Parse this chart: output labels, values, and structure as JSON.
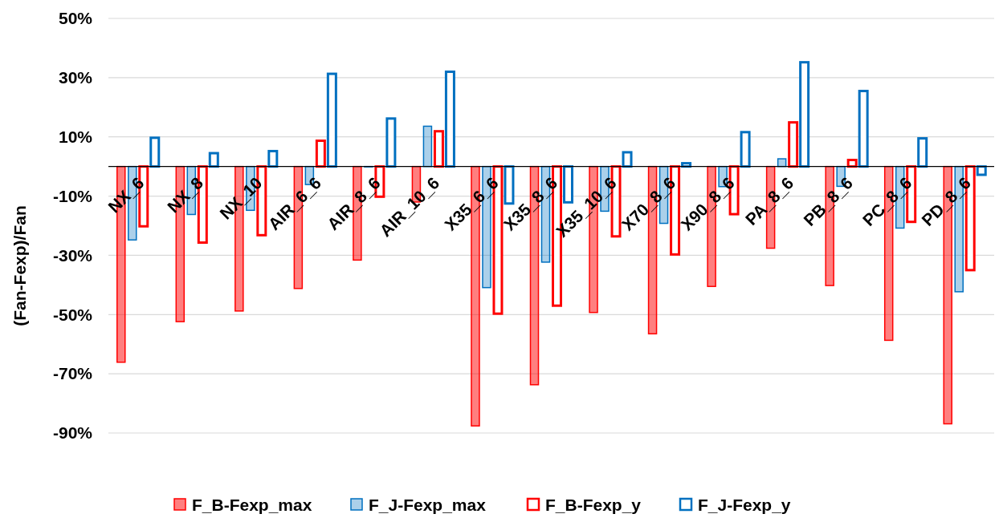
{
  "chart_data": {
    "type": "bar",
    "ylabel": "(Fan-Fexp)/Fan",
    "categories": [
      "NX_6",
      "NX_8",
      "NX_10",
      "AIR_6_6",
      "AIR_8_6",
      "AIR_10_6",
      "X35_6_6",
      "X35_8_6",
      "X35_10_6",
      "X70_8_6",
      "X90_8_6",
      "PA_8_6",
      "PB_8_6",
      "PC_8_6",
      "PD_8_6"
    ],
    "series": [
      {
        "name": "F_B-Fexp_max",
        "color": "#ff0000",
        "values": [
          -66.1,
          -52.4,
          -48.8,
          -41.2,
          -31.6,
          -12.0,
          -87.6,
          -73.7,
          -49.3,
          -56.5,
          -40.5,
          -27.6,
          -40.2,
          -58.7,
          -86.9
        ]
      },
      {
        "name": "F_J-Fexp_max",
        "color": "#0070c0",
        "values": [
          -24.8,
          -16.2,
          -14.8,
          -6.1,
          0,
          13.6,
          -40.9,
          -32.3,
          -15.1,
          -19.2,
          -6.8,
          2.6,
          -6.7,
          -20.8,
          -42.3
        ]
      },
      {
        "name": "F_B-Fexp_y",
        "color": "#ff0000",
        "values": [
          -20.2,
          -25.7,
          -23.2,
          8.7,
          -10.2,
          11.9,
          -49.7,
          -47.0,
          -23.6,
          -29.7,
          -16.1,
          14.9,
          2.2,
          -18.7,
          -35.0
        ]
      },
      {
        "name": "F_J-Fexp_y",
        "color": "#0070c0",
        "values": [
          9.7,
          4.5,
          5.2,
          31.3,
          16.2,
          32.0,
          -12.5,
          -12.1,
          4.8,
          1.1,
          11.6,
          35.2,
          25.5,
          9.5,
          -2.8
        ]
      }
    ],
    "ylim": [
      -90,
      50
    ],
    "yticks": [
      {
        "value": 50,
        "label": "50%"
      },
      {
        "value": 30,
        "label": "30%"
      },
      {
        "value": 10,
        "label": "10%"
      },
      {
        "value": -10,
        "label": "-10%"
      },
      {
        "value": -30,
        "label": "-30%"
      },
      {
        "value": -50,
        "label": "-50%"
      },
      {
        "value": -70,
        "label": "-70%"
      },
      {
        "value": -90,
        "label": "-90%"
      }
    ],
    "grid": "y",
    "legend": "bottom"
  }
}
